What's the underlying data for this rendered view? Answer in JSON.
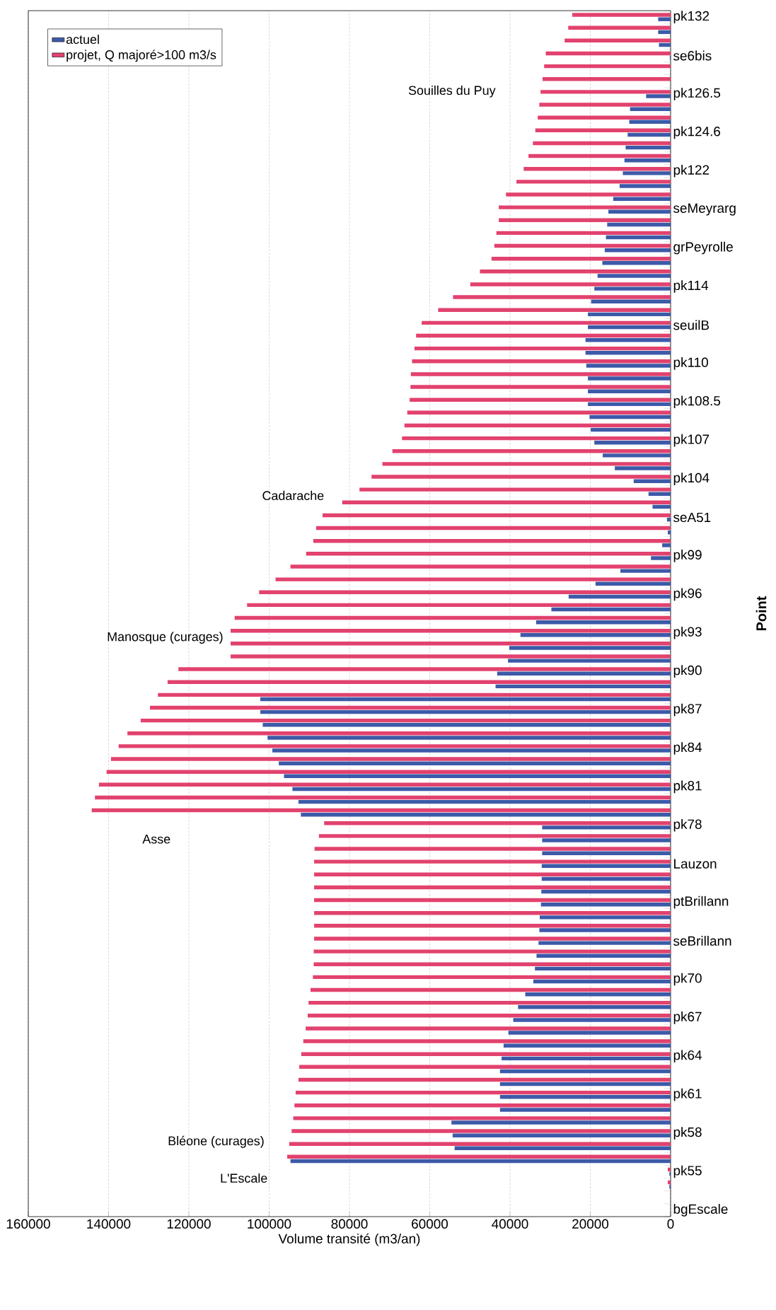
{
  "chart_data": {
    "type": "bar",
    "orientation": "horizontal",
    "xlabel": "Volume transité (m3/an)",
    "ylabel": "Point",
    "categories": [
      "pk132",
      null,
      null,
      "se6bis",
      null,
      null,
      "pk126.5",
      null,
      null,
      "pk124.6",
      null,
      null,
      "pk122",
      null,
      null,
      "seMeyrarg",
      null,
      null,
      "grPeyrolle",
      null,
      null,
      "pk114",
      null,
      null,
      "seuilB",
      null,
      null,
      "pk110",
      null,
      null,
      "pk108.5",
      null,
      null,
      "pk107",
      null,
      null,
      "pk104",
      null,
      null,
      "seA51",
      null,
      null,
      "pk99",
      null,
      null,
      "pk96",
      null,
      null,
      "pk93",
      null,
      null,
      "pk90",
      null,
      null,
      "pk87",
      null,
      null,
      "pk84",
      null,
      null,
      "pk81",
      null,
      null,
      "pk78",
      null,
      null,
      "Lauzon",
      null,
      null,
      "ptBrillann",
      null,
      null,
      "seBrillann",
      null,
      null,
      "pk70",
      null,
      null,
      "pk67",
      null,
      null,
      "pk64",
      null,
      null,
      "pk61",
      null,
      null,
      "pk58",
      null,
      null,
      "pk55",
      null,
      null,
      "bgEscale"
    ],
    "series": [
      {
        "name": "actuel",
        "color": "#3c5aa8",
        "values": [
          3100,
          3100,
          2900,
          200,
          0,
          0,
          6100,
          10100,
          10300,
          10700,
          11200,
          11500,
          11900,
          12700,
          14300,
          15500,
          15800,
          16100,
          16400,
          17000,
          18200,
          19000,
          19800,
          20600,
          20600,
          21200,
          21200,
          21000,
          20600,
          20600,
          20600,
          20200,
          19900,
          19000,
          16900,
          13900,
          9200,
          5500,
          4500,
          900,
          700,
          2100,
          4900,
          12500,
          18700,
          25400,
          29700,
          33500,
          37400,
          40200,
          40500,
          43200,
          43600,
          102200,
          102200,
          101600,
          100400,
          99200,
          97600,
          96300,
          94200,
          92700,
          92100,
          32000,
          32000,
          32000,
          32100,
          32100,
          32200,
          32300,
          32600,
          32700,
          32900,
          33400,
          33800,
          34200,
          36200,
          38000,
          39200,
          40400,
          41600,
          42100,
          42500,
          42500,
          42500,
          42500,
          54600,
          54300,
          53800,
          94700,
          300,
          300,
          0,
          0
        ]
      },
      {
        "name": "projet, Q majoré>100 m3/s",
        "color": "#e2426e",
        "values": [
          24500,
          25500,
          26400,
          31100,
          31500,
          31900,
          32400,
          32700,
          33100,
          33700,
          34300,
          35400,
          36600,
          38400,
          41000,
          42800,
          42800,
          43400,
          43900,
          44600,
          47500,
          49900,
          54200,
          57900,
          62000,
          63400,
          63800,
          64400,
          64700,
          64800,
          65000,
          65600,
          66300,
          66900,
          69300,
          71800,
          74500,
          77500,
          81800,
          86700,
          88300,
          89000,
          90800,
          94700,
          98400,
          102500,
          105500,
          108600,
          109600,
          109600,
          109600,
          122600,
          125300,
          127700,
          129700,
          132000,
          135300,
          137500,
          139400,
          140500,
          142400,
          143400,
          144200,
          86300,
          87600,
          88700,
          88800,
          88800,
          88800,
          88800,
          88800,
          88800,
          88800,
          88900,
          88900,
          89100,
          89700,
          90200,
          90400,
          90900,
          91500,
          92000,
          92500,
          92700,
          93400,
          93700,
          94000,
          94400,
          95000,
          95500,
          700,
          700,
          0,
          0
        ]
      }
    ],
    "xlim": [
      160000,
      0
    ],
    "xticks": [
      0,
      20000,
      40000,
      60000,
      80000,
      100000,
      120000,
      140000,
      160000
    ],
    "grid": "x",
    "legend": "top left",
    "annotations": [
      "L'Escale",
      "Bléone (curages)",
      "Asse",
      "Manosque (curages)",
      "Cadarache",
      "Souilles du Puy"
    ]
  }
}
